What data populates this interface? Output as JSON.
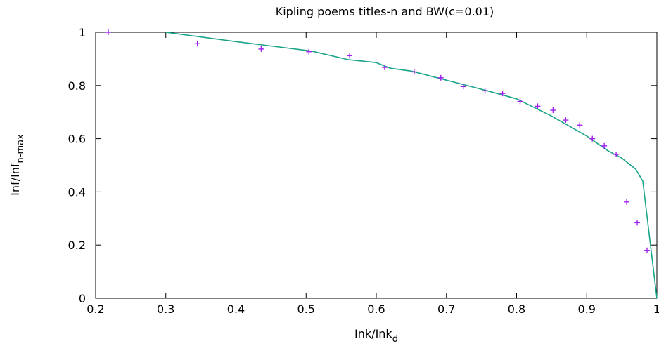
{
  "chart_data": {
    "type": "scatter",
    "title": "Kipling poems titles-n and BW(c=0.01)",
    "xlabel": {
      "main": "Ink/Ink",
      "sub": "d"
    },
    "ylabel": {
      "main": "Inf/Inf",
      "sub": "n-max"
    },
    "xlim": [
      0.2,
      1.0
    ],
    "ylim": [
      0,
      1.0
    ],
    "x_ticks": [
      {
        "value": 0.2,
        "label": "0.2"
      },
      {
        "value": 0.3,
        "label": "0.3"
      },
      {
        "value": 0.4,
        "label": "0.4"
      },
      {
        "value": 0.5,
        "label": "0.5"
      },
      {
        "value": 0.6,
        "label": "0.6"
      },
      {
        "value": 0.7,
        "label": "0.7"
      },
      {
        "value": 0.8,
        "label": "0.8"
      },
      {
        "value": 0.9,
        "label": "0.9"
      },
      {
        "value": 1.0,
        "label": "1"
      }
    ],
    "y_ticks": [
      {
        "value": 0,
        "label": "0"
      },
      {
        "value": 0.2,
        "label": "0.2"
      },
      {
        "value": 0.4,
        "label": "0.4"
      },
      {
        "value": 0.6,
        "label": "0.6"
      },
      {
        "value": 0.8,
        "label": "0.8"
      },
      {
        "value": 1.0,
        "label": "1"
      }
    ],
    "grid": false,
    "series": [
      {
        "kind": "points",
        "marker": "plus",
        "color": "#a020f0",
        "x": [
          0.218,
          0.345,
          0.436,
          0.504,
          0.562,
          0.612,
          0.654,
          0.692,
          0.724,
          0.755,
          0.78,
          0.805,
          0.83,
          0.852,
          0.87,
          0.89,
          0.908,
          0.925,
          0.942,
          0.957,
          0.972,
          0.986
        ],
        "y": [
          1.0,
          0.957,
          0.937,
          0.927,
          0.912,
          0.868,
          0.851,
          0.829,
          0.796,
          0.78,
          0.77,
          0.74,
          0.722,
          0.707,
          0.67,
          0.651,
          0.6,
          0.573,
          0.541,
          0.362,
          0.284,
          0.18
        ]
      },
      {
        "kind": "line",
        "color": "#1aa48a",
        "x": [
          0.3,
          0.4,
          0.5,
          0.51,
          0.56,
          0.6,
          0.62,
          0.65,
          0.7,
          0.75,
          0.8,
          0.85,
          0.9,
          0.93,
          0.95,
          0.97,
          0.98,
          1.0
        ],
        "y": [
          1.0,
          0.965,
          0.932,
          0.928,
          0.897,
          0.886,
          0.865,
          0.854,
          0.82,
          0.786,
          0.75,
          0.685,
          0.61,
          0.555,
          0.527,
          0.485,
          0.44,
          0.0
        ]
      }
    ]
  }
}
